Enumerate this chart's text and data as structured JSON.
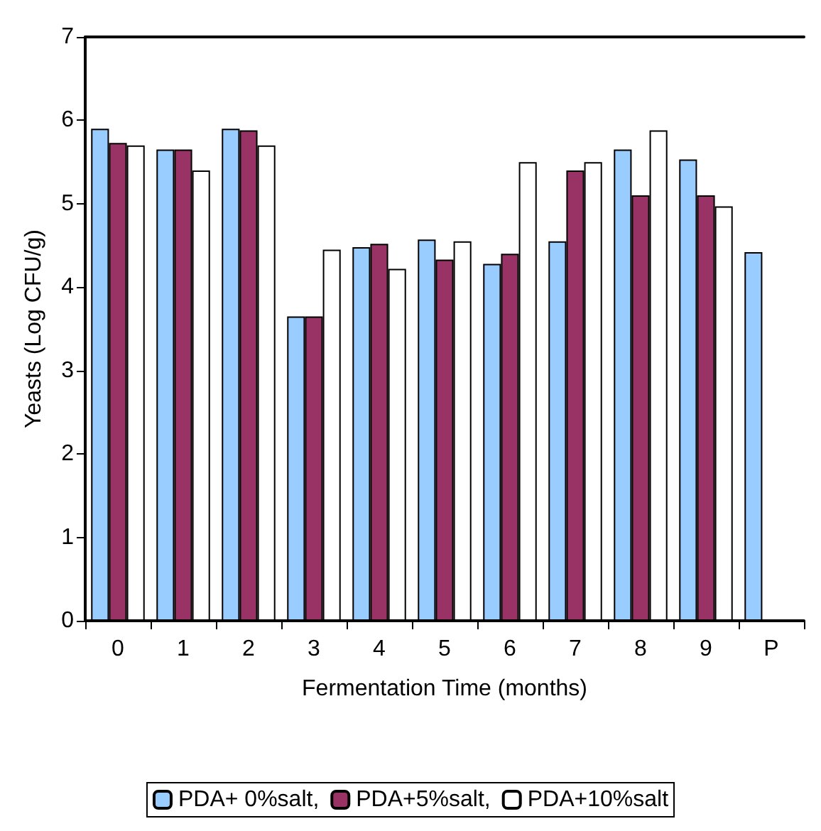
{
  "chart_data": {
    "type": "bar",
    "xlabel": "Fermentation Time (months)",
    "ylabel": "Yeasts (Log CFU/g)",
    "categories": [
      "0",
      "1",
      "2",
      "3",
      "4",
      "5",
      "6",
      "7",
      "8",
      "9",
      "P"
    ],
    "series": [
      {
        "name": "PDA+ 0%salt,",
        "color": "#99ccff",
        "values": [
          5.9,
          5.65,
          5.9,
          3.65,
          4.48,
          4.57,
          4.28,
          4.55,
          5.65,
          5.53,
          4.42
        ]
      },
      {
        "name": "PDA+5%salt,",
        "color": "#993366",
        "values": [
          5.73,
          5.65,
          5.88,
          3.65,
          4.52,
          4.33,
          4.4,
          5.4,
          5.1,
          5.1,
          null
        ]
      },
      {
        "name": "PDA+10%salt",
        "color": "#ffffff",
        "values": [
          5.7,
          5.4,
          5.7,
          4.45,
          4.22,
          4.55,
          5.5,
          5.5,
          5.88,
          4.97,
          null
        ]
      }
    ],
    "ylim": [
      0,
      7
    ],
    "yticks": [
      0,
      1,
      2,
      3,
      4,
      5,
      6,
      7
    ],
    "grid": false,
    "legend": "bottom"
  }
}
